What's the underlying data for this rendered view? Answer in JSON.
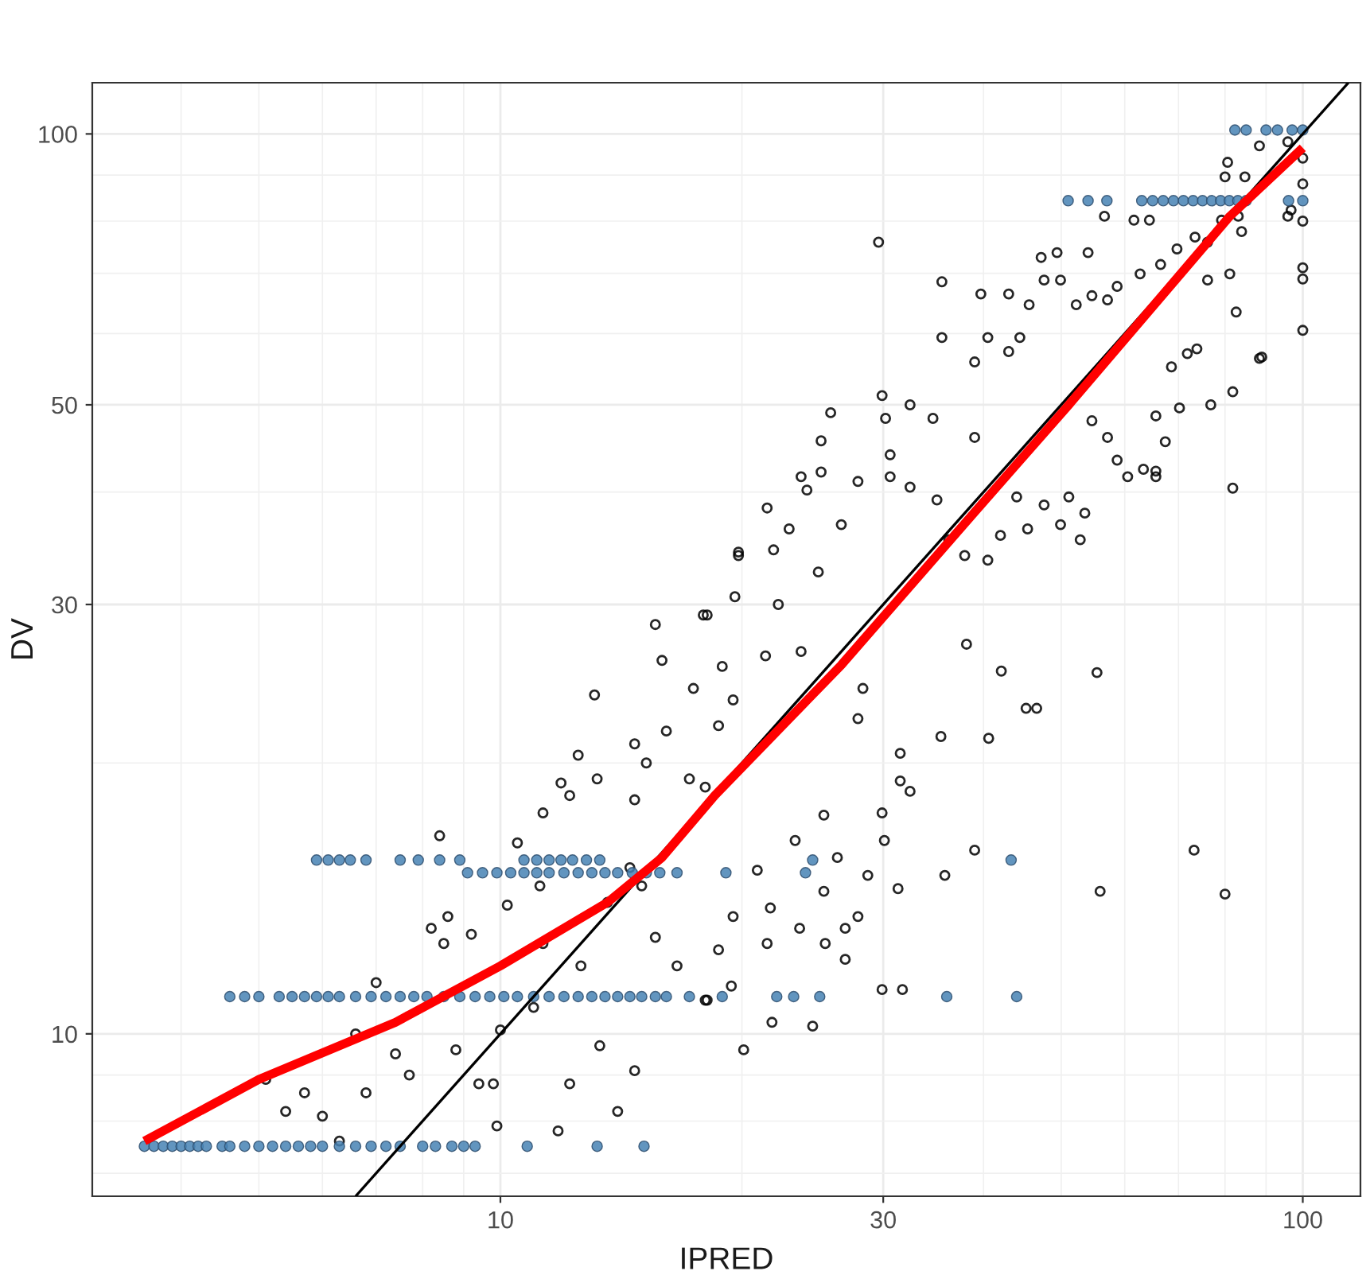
{
  "chart_data": {
    "type": "scatter",
    "xlabel": "IPRED",
    "ylabel": "DV",
    "log": "xy",
    "grid": true,
    "xlim": [
      3.1,
      118
    ],
    "ylim": [
      6.6,
      114
    ],
    "xticks": [
      {
        "value": 4,
        "label": null
      },
      {
        "value": 5,
        "label": null
      },
      {
        "value": 6,
        "label": null
      },
      {
        "value": 7,
        "label": null
      },
      {
        "value": 8,
        "label": null
      },
      {
        "value": 9,
        "label": null
      },
      10,
      {
        "value": 20,
        "label": null
      },
      30,
      {
        "value": 40,
        "label": null
      },
      {
        "value": 50,
        "label": null
      },
      {
        "value": 60,
        "label": null
      },
      {
        "value": 70,
        "label": null
      },
      {
        "value": 80,
        "label": null
      },
      {
        "value": 90,
        "label": null
      },
      100
    ],
    "yticks": [
      {
        "value": 7,
        "label": null
      },
      {
        "value": 8,
        "label": null
      },
      {
        "value": 9,
        "label": null
      },
      10,
      {
        "value": 20,
        "label": null
      },
      30,
      {
        "value": 40,
        "label": null
      },
      50,
      {
        "value": 60,
        "label": null
      },
      {
        "value": 70,
        "label": null
      },
      {
        "value": 80,
        "label": null
      },
      {
        "value": 90,
        "label": null
      },
      100
    ],
    "series": [
      {
        "color": "#000000",
        "marker": "circle",
        "x": [
          5.1,
          5.7,
          5.4,
          6.0,
          6.3,
          6.8,
          6.6,
          7.0,
          7.4,
          7.7,
          8.2,
          8.5,
          8.4,
          8.6,
          8.8,
          9.2,
          9.4,
          9.8,
          10.0,
          9.9,
          10.2,
          10.5,
          11.0,
          11.3,
          11.3,
          11.8,
          11.9,
          12.5,
          12.2,
          12.6,
          13.2,
          13.3,
          13.6,
          14.0,
          14.7,
          14.7,
          15.2,
          15.6,
          15.9,
          16.6,
          17.4,
          18.0,
          13.1,
          14.5,
          15.0,
          11.2,
          29.6,
          35.5,
          39.7,
          43.0,
          47.2,
          49.4,
          54.0,
          56.6,
          61.6,
          64.4,
          80.6,
          88.3,
          95.8,
          100,
          100,
          100,
          100,
          100,
          100,
          95.8,
          88.9,
          81.8,
          76.8,
          82.6,
          81.1,
          76.1,
          73.8,
          71.8,
          68.6,
          70.2,
          67.4,
          65.6,
          65.6,
          63.3,
          60.5,
          58.7,
          57.1,
          54.6,
          53.5,
          52.8,
          51.1,
          49.9,
          47.6,
          45.4,
          44.0,
          42.0,
          40.5,
          37.9,
          36.2,
          35.0,
          32.4,
          30.6,
          27.9,
          25.1,
          24.1,
          22.9,
          21.9,
          19.8,
          19.6,
          18.1,
          29.9,
          30.2,
          32.4,
          34.6,
          35.5,
          39.0,
          40.5,
          43.0,
          44.4,
          45.6,
          47.6,
          49.9,
          52.2,
          54.6,
          57.1,
          58.7,
          62.7,
          66.5,
          69.7,
          73.4,
          76.1,
          79.2,
          83.1,
          83.9,
          84.7,
          80.0,
          96.7,
          30.6,
          39.0,
          25.8,
          21.5,
          25.1,
          88.3,
          81.8,
          65.6,
          55.4,
          73.2,
          55.9,
          80.0,
          46.6,
          45.2,
          42.1,
          40.6,
          39.0,
          35.8,
          35.4,
          32.4,
          31.5,
          31.3,
          31.7,
          29.9,
          30.1,
          28.7,
          27.9,
          26.9,
          26.9,
          26.3,
          25.3,
          25.3,
          25.4,
          24.5,
          23.6,
          23.3,
          21.7,
          21.8,
          21.5,
          20.9,
          20.1,
          19.5,
          19.4,
          18.7,
          18.1,
          27.9,
          29.9,
          31.5,
          38.1,
          28.3,
          23.7,
          21.4,
          19.5,
          18.7,
          18.0,
          17.9,
          15.6,
          14.7,
          12.2,
          16.1,
          19.8,
          22.2,
          23.7,
          24.9,
          26.6,
          18.9,
          17.2
        ],
        "values": [
          8.9,
          8.6,
          8.2,
          8.1,
          7.6,
          8.6,
          10.0,
          11.4,
          9.5,
          9.0,
          13.1,
          12.6,
          16.6,
          13.5,
          9.6,
          12.9,
          8.8,
          8.8,
          10.1,
          7.9,
          13.9,
          16.3,
          10.7,
          17.6,
          12.6,
          7.8,
          19.0,
          20.4,
          8.8,
          11.9,
          19.2,
          9.7,
          14.0,
          8.2,
          9.1,
          18.2,
          20.0,
          12.8,
          26,
          11.9,
          24.2,
          10.9,
          23.8,
          15.3,
          14.6,
          14.6,
          75.8,
          68.5,
          66.4,
          66.4,
          72.9,
          73.8,
          73.8,
          81.0,
          80.2,
          80.2,
          93,
          97,
          98,
          94,
          88,
          80,
          71,
          69,
          60.5,
          81,
          56.5,
          51.7,
          50,
          63.4,
          69.9,
          68.8,
          57.7,
          57,
          55.1,
          49.6,
          45.5,
          48.6,
          41.6,
          42.4,
          41.6,
          43.4,
          46.0,
          48.0,
          37.9,
          35.4,
          39.5,
          36.8,
          38.7,
          36.4,
          39.5,
          35.8,
          33.6,
          34.0,
          35.4,
          39.2,
          40.5,
          41.6,
          41.1,
          42.1,
          40.2,
          36.4,
          34.5,
          34.0,
          30.6,
          29.2,
          51.2,
          48.3,
          50.0,
          48.3,
          59.4,
          55.8,
          59.4,
          57.3,
          59.4,
          64.6,
          68.8,
          68.8,
          64.6,
          66.1,
          65.4,
          67.7,
          69.9,
          71.6,
          74.5,
          76.8,
          75.8,
          80.2,
          81.0,
          77.9,
          89.6,
          89.6,
          82.3,
          44.0,
          46.0,
          49.0,
          38.4,
          45.6,
          56.3,
          40.4,
          42.2,
          25.2,
          16.0,
          14.4,
          14.3,
          23.0,
          23.0,
          25.3,
          21.3,
          16.0,
          15.0,
          21.4,
          18.6,
          19.1,
          14.5,
          11.2,
          11.2,
          16.4,
          15.0,
          13.5,
          12.1,
          13.1,
          15.7,
          17.5,
          14.4,
          12.6,
          10.2,
          13.1,
          16.4,
          13.8,
          10.3,
          12.6,
          15.2,
          9.6,
          13.5,
          11.3,
          12.4,
          10.9,
          22.4,
          17.6,
          20.5,
          27.1,
          24.2,
          26.6,
          26.3,
          23.5,
          22.0,
          18.8,
          29.2,
          28.5,
          21.0,
          18.4,
          21.7,
          34.3,
          30.0,
          41.6,
          32.6,
          36.8,
          25.6,
          19.2
        ]
      },
      {
        "color": "#4682b4",
        "marker": "circle",
        "x": [
          3.6,
          3.7,
          3.8,
          3.9,
          4.0,
          4.1,
          4.2,
          4.3,
          4.5,
          4.6,
          4.8,
          5.0,
          5.2,
          5.4,
          5.6,
          5.8,
          6.0,
          6.3,
          6.6,
          6.9,
          7.2,
          7.5,
          8.0,
          8.3,
          8.7,
          9.0,
          9.3,
          10.8,
          13.2,
          15.1,
          4.6,
          4.8,
          5.0,
          5.3,
          5.5,
          5.7,
          5.9,
          6.1,
          6.3,
          6.6,
          6.9,
          7.2,
          7.5,
          7.8,
          8.1,
          8.5,
          8.9,
          9.3,
          9.7,
          10.1,
          10.5,
          11.0,
          11.5,
          12.0,
          12.5,
          13.0,
          13.5,
          14.0,
          14.5,
          15.0,
          15.6,
          16.1,
          17.2,
          18.9,
          22.1,
          23.2,
          25,
          36,
          44,
          5.9,
          6.1,
          6.3,
          6.5,
          6.8,
          7.5,
          7.9,
          8.4,
          8.9,
          10.7,
          11.1,
          11.5,
          11.9,
          12.3,
          12.8,
          13.3,
          24.5,
          43.3,
          9.1,
          9.5,
          9.9,
          10.3,
          10.7,
          11.1,
          11.5,
          12.0,
          12.5,
          13.0,
          13.5,
          14.0,
          14.6,
          15.2,
          15.8,
          16.6,
          19.1,
          24.0,
          51,
          54,
          57,
          63,
          65,
          67,
          69,
          71,
          73,
          75,
          77,
          79,
          81,
          83,
          85,
          96,
          100,
          82.3,
          85,
          90,
          93,
          97,
          100
        ],
        "values": [
          7.5,
          7.5,
          7.5,
          7.5,
          7.5,
          7.5,
          7.5,
          7.5,
          7.5,
          7.5,
          7.5,
          7.5,
          7.5,
          7.5,
          7.5,
          7.5,
          7.5,
          7.5,
          7.5,
          7.5,
          7.5,
          7.5,
          7.5,
          7.5,
          7.5,
          7.5,
          7.5,
          7.5,
          7.5,
          7.5,
          11,
          11,
          11,
          11,
          11,
          11,
          11,
          11,
          11,
          11,
          11,
          11,
          11,
          11,
          11,
          11,
          11,
          11,
          11,
          11,
          11,
          11,
          11,
          11,
          11,
          11,
          11,
          11,
          11,
          11,
          11,
          11,
          11,
          11,
          11,
          11,
          11,
          11,
          11,
          15.6,
          15.6,
          15.6,
          15.6,
          15.6,
          15.6,
          15.6,
          15.6,
          15.6,
          15.6,
          15.6,
          15.6,
          15.6,
          15.6,
          15.6,
          15.6,
          15.6,
          15.6,
          15.1,
          15.1,
          15.1,
          15.1,
          15.1,
          15.1,
          15.1,
          15.1,
          15.1,
          15.1,
          15.1,
          15.1,
          15.1,
          15.1,
          15.1,
          15.1,
          15.1,
          15.1,
          84.3,
          84.3,
          84.3,
          84.3,
          84.3,
          84.3,
          84.3,
          84.3,
          84.3,
          84.3,
          84.3,
          84.3,
          84.3,
          84.3,
          84.3,
          84.3,
          84.3,
          101,
          101,
          101,
          101,
          101,
          101
        ]
      },
      {
        "type": "line",
        "color": "#000000",
        "line_style": "solid",
        "x": [
          6.6,
          114
        ],
        "values": [
          6.6,
          114
        ]
      },
      {
        "type": "line",
        "color": "#ff0000",
        "line_style": "solid",
        "x": [
          3.6,
          5.0,
          7.4,
          10,
          13.6,
          15.9,
          18.5,
          26.6,
          38.9,
          51.1,
          81.1,
          100
        ],
        "values": [
          7.6,
          8.9,
          10.3,
          11.9,
          14.0,
          15.7,
          18.4,
          25.7,
          37.9,
          50,
          81,
          96.5
        ]
      }
    ]
  }
}
